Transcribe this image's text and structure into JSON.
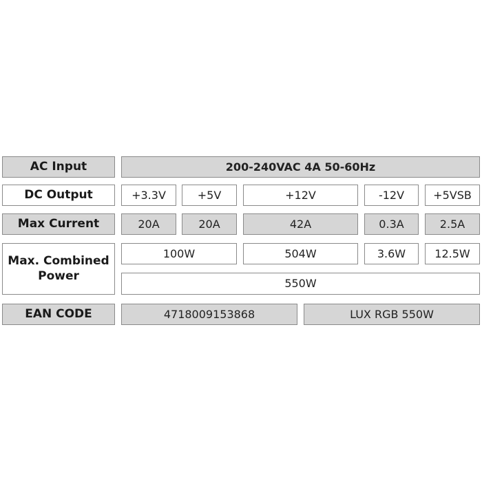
{
  "colors": {
    "gray_cell": "#d6d6d6",
    "border": "#8a8a8a"
  },
  "ac_input": {
    "label": "AC Input",
    "value": "200-240VAC 4A 50-60Hz"
  },
  "dc_output": {
    "label": "DC Output",
    "rails": [
      "+3.3V",
      "+5V",
      "+12V",
      "-12V",
      "+5VSB"
    ]
  },
  "max_current": {
    "label": "Max Current",
    "values": [
      "20A",
      "20A",
      "42A",
      "0.3A",
      "2.5A"
    ]
  },
  "max_combined_power": {
    "label_line1": "Max. Combined",
    "label_line2": "Power",
    "values": [
      "100W",
      "504W",
      "3.6W",
      "12.5W"
    ],
    "total": "550W"
  },
  "ean": {
    "label": "EAN CODE",
    "code": "4718009153868",
    "model": "LUX RGB 550W"
  }
}
